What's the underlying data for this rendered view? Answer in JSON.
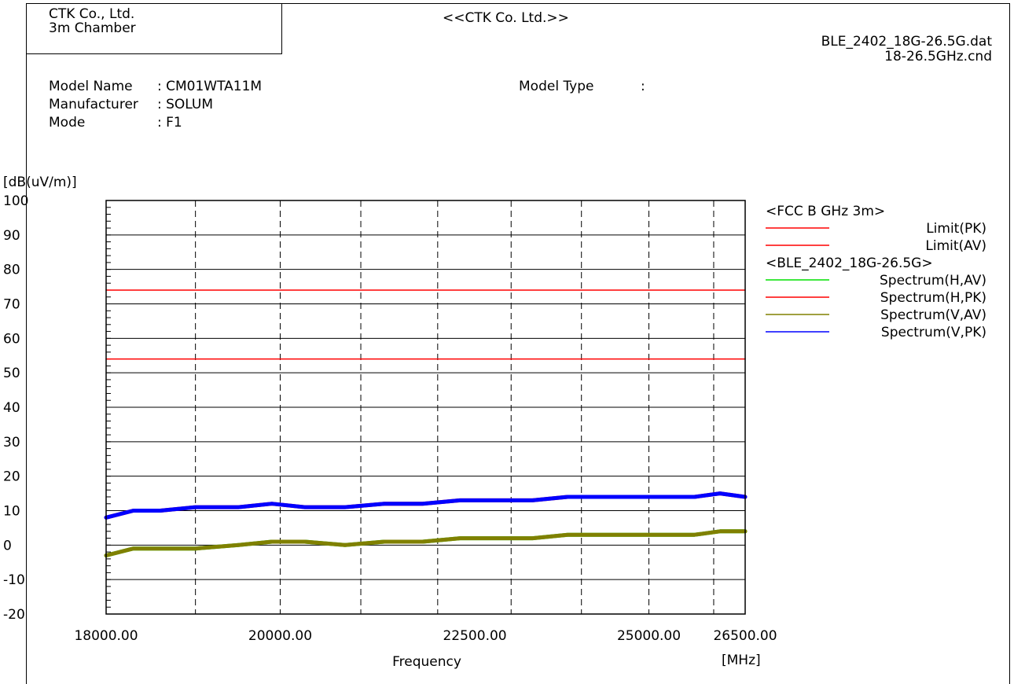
{
  "header": {
    "company_line1": "CTK Co., Ltd.",
    "company_line2": "3m Chamber",
    "center_title": "<<CTK Co. Ltd.>>",
    "data_file": "BLE_2402_18G-26.5G.dat",
    "condition_file": "18-26.5GHz.cnd"
  },
  "info": {
    "model_name_label": "Model Name",
    "model_name_value": ": CM01WTA11M",
    "manufacturer_label": "Manufacturer",
    "manufacturer_value": ": SOLUM",
    "mode_label": "Mode",
    "mode_value": ": F1",
    "model_type_label": "Model Type",
    "model_type_value": ":"
  },
  "chart_data": {
    "type": "line",
    "ylabel": "[dB(uV/m)]",
    "xlabel": "Frequency",
    "xunit": "[MHz]",
    "xlim": [
      18000,
      26500
    ],
    "ylim": [
      -20,
      100
    ],
    "yticks": [
      -20,
      -10,
      0,
      10,
      20,
      30,
      40,
      50,
      60,
      70,
      80,
      90,
      100
    ],
    "xtick_labels": [
      {
        "value": 18000,
        "label": "18000.00"
      },
      {
        "value": 20000,
        "label": "20000.00"
      },
      {
        "value": 22500,
        "label": "22500.00"
      },
      {
        "value": 25000,
        "label": "25000.00"
      },
      {
        "value": 26500,
        "label": "26500.00"
      }
    ],
    "grid": true,
    "legend_position": "right",
    "legend_groups": [
      {
        "title": "<FCC B GHz 3m>",
        "entries": [
          "Limit(PK)",
          "Limit(AV)"
        ]
      },
      {
        "title": "<BLE_2402_18G-26.5G>",
        "entries": [
          "Spectrum(H,AV)",
          "Spectrum(H,PK)",
          "Spectrum(V,AV)",
          "Spectrum(V,PK)"
        ]
      }
    ],
    "colors": {
      "Limit(PK)": "#ff0000",
      "Limit(AV)": "#ff0000",
      "Spectrum(H,AV)": "#00e000",
      "Spectrum(H,PK)": "#ff0000",
      "Spectrum(V,AV)": "#808000",
      "Spectrum(V,PK)": "#0000ff"
    },
    "series": [
      {
        "name": "Limit(PK)",
        "x": [
          18000,
          26500
        ],
        "y": [
          74,
          74
        ]
      },
      {
        "name": "Limit(AV)",
        "x": [
          18000,
          26500
        ],
        "y": [
          54,
          54
        ]
      },
      {
        "name": "Spectrum(H,PK)",
        "x": [
          18000,
          18300,
          18600,
          19000,
          19500,
          19900,
          20300,
          20800,
          21300,
          21800,
          22300,
          22500,
          22900,
          23300,
          23800,
          24200,
          24700,
          25200,
          25700,
          26100,
          26500
        ],
        "y": [
          8,
          10,
          10,
          11,
          11,
          12,
          11,
          11,
          12,
          12,
          13,
          13,
          13,
          13,
          14,
          14,
          14,
          14,
          14,
          15,
          14
        ]
      },
      {
        "name": "Spectrum(V,PK)",
        "x": [
          18000,
          18300,
          18600,
          19000,
          19500,
          19900,
          20300,
          20800,
          21300,
          21800,
          22300,
          22500,
          22900,
          23300,
          23800,
          24200,
          24700,
          25200,
          25700,
          26100,
          26500
        ],
        "y": [
          8,
          10,
          10,
          11,
          11,
          12,
          11,
          11,
          12,
          12,
          13,
          13,
          13,
          13,
          14,
          14,
          14,
          14,
          14,
          15,
          14
        ]
      },
      {
        "name": "Spectrum(H,AV)",
        "x": [
          18000,
          18300,
          18600,
          19000,
          19500,
          19900,
          20300,
          20800,
          21300,
          21800,
          22300,
          22500,
          22900,
          23300,
          23800,
          24200,
          24700,
          25200,
          25700,
          26100,
          26500
        ],
        "y": [
          -3,
          -1,
          -1,
          -1,
          0,
          1,
          1,
          0,
          1,
          1,
          2,
          2,
          2,
          2,
          3,
          3,
          3,
          3,
          3,
          4,
          4
        ]
      },
      {
        "name": "Spectrum(V,AV)",
        "x": [
          18000,
          18300,
          18600,
          19000,
          19500,
          19900,
          20300,
          20800,
          21300,
          21800,
          22300,
          22500,
          22900,
          23300,
          23800,
          24200,
          24700,
          25200,
          25700,
          26100,
          26500
        ],
        "y": [
          -3,
          -1,
          -1,
          -1,
          0,
          1,
          1,
          0,
          1,
          1,
          2,
          2,
          2,
          2,
          3,
          3,
          3,
          3,
          3,
          4,
          4
        ]
      }
    ]
  }
}
